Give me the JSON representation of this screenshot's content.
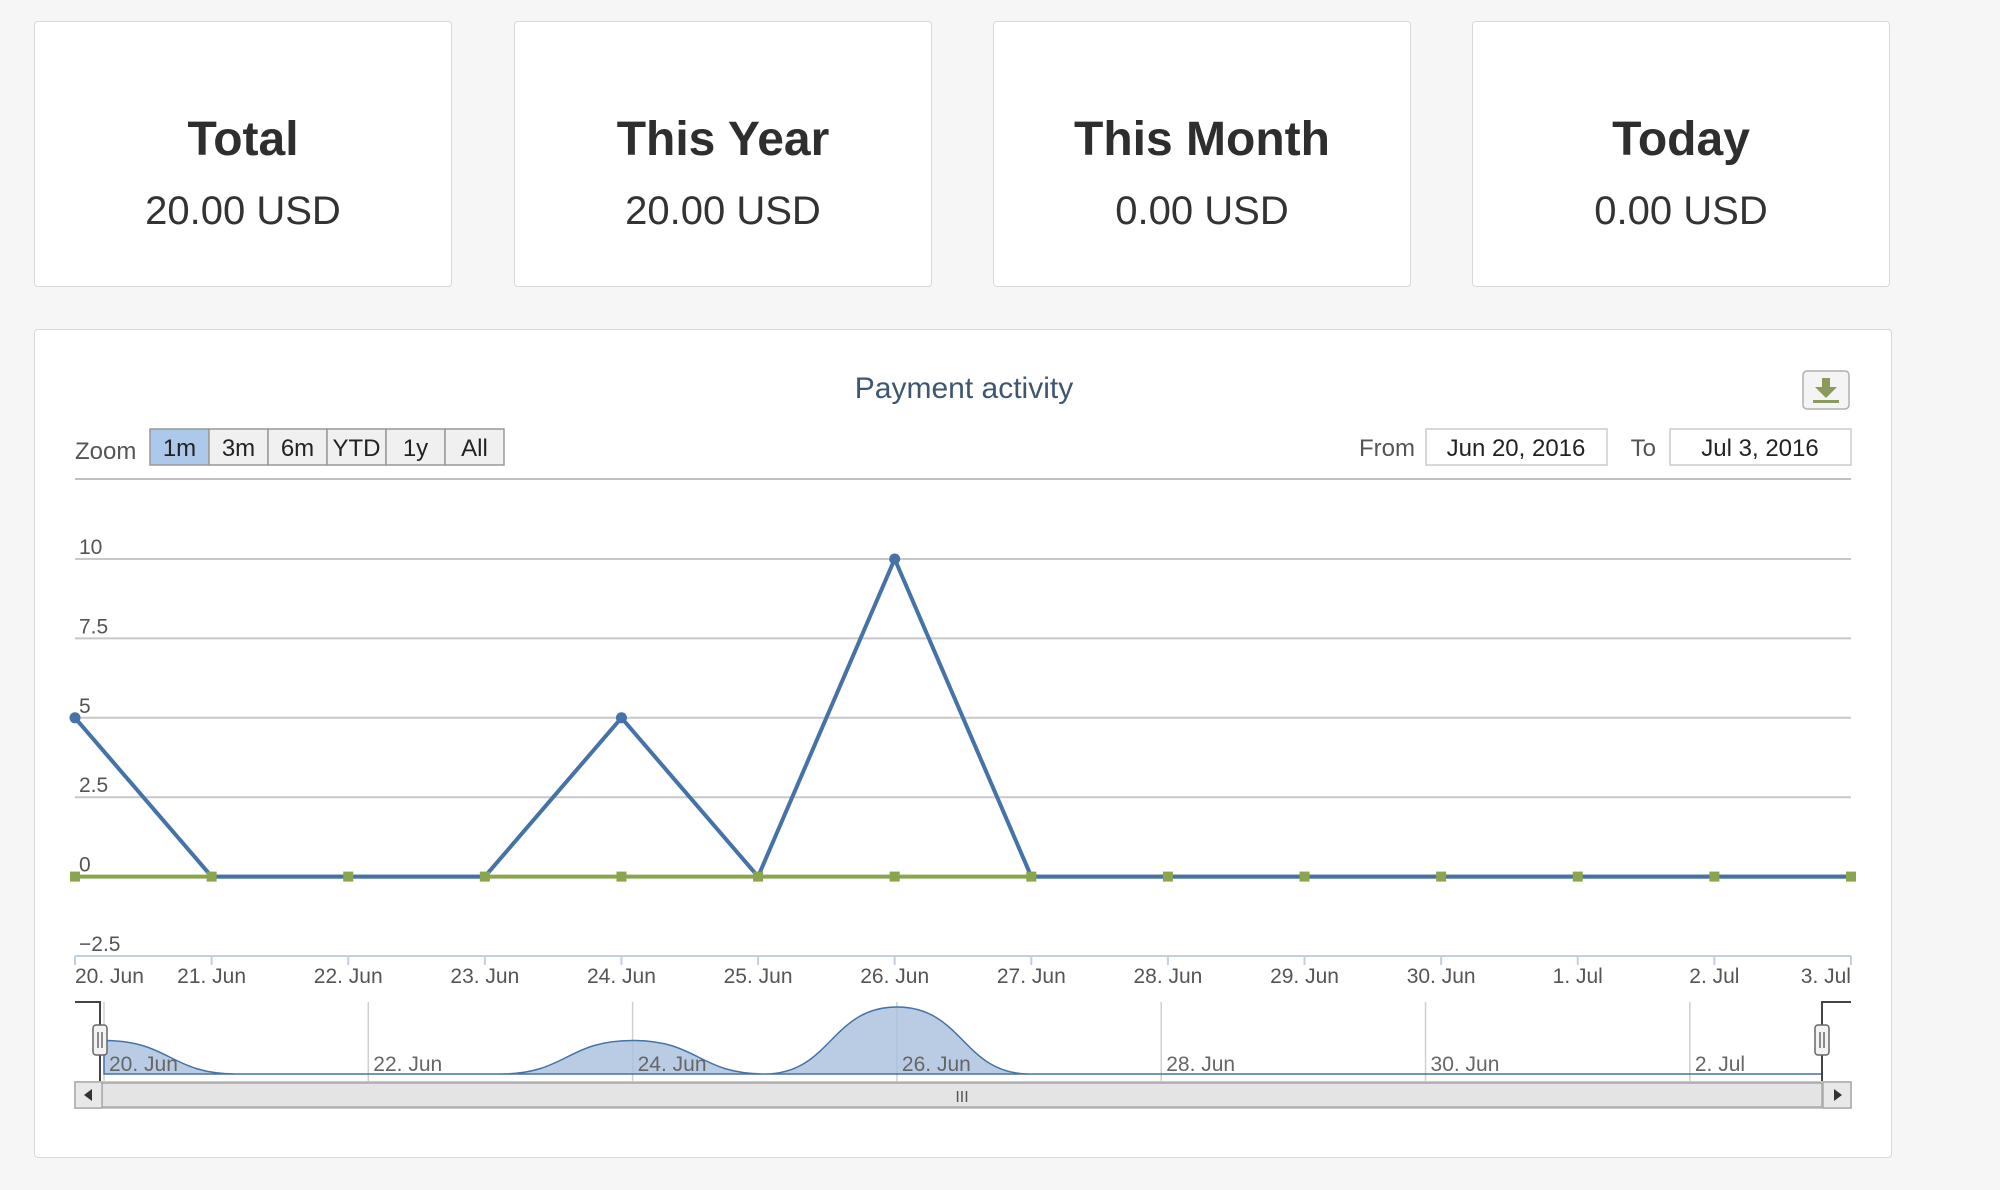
{
  "stats": [
    {
      "title": "Total",
      "value": "20.00 USD"
    },
    {
      "title": "This Year",
      "value": "20.00 USD"
    },
    {
      "title": "This Month",
      "value": "0.00 USD"
    },
    {
      "title": "Today",
      "value": "0.00 USD"
    }
  ],
  "chart_data": {
    "type": "line",
    "title": "Payment activity",
    "x": [
      "2016-06-20",
      "2016-06-21",
      "2016-06-22",
      "2016-06-23",
      "2016-06-24",
      "2016-06-25",
      "2016-06-26",
      "2016-06-27",
      "2016-06-28",
      "2016-06-29",
      "2016-06-30",
      "2016-07-01",
      "2016-07-02",
      "2016-07-03"
    ],
    "series": [
      {
        "values": [
          5,
          0,
          0,
          0,
          5,
          0,
          10,
          0,
          0,
          0,
          0,
          0,
          0,
          0
        ],
        "color": "#4572a7",
        "marker": "circle"
      },
      {
        "values": [
          0,
          0,
          0,
          0,
          0,
          0,
          0,
          0,
          0,
          0,
          0,
          0,
          0,
          0
        ],
        "color": "#89a54e",
        "marker": "square"
      }
    ],
    "ylim": [
      -2.5,
      10
    ],
    "yticks": [
      "10",
      "7.5",
      "5",
      "2.5",
      "0",
      "−2.5"
    ],
    "xtick_labels": [
      "20. Jun",
      "21. Jun",
      "22. Jun",
      "23. Jun",
      "24. Jun",
      "25. Jun",
      "26. Jun",
      "27. Jun",
      "28. Jun",
      "29. Jun",
      "30. Jun",
      "1. Jul",
      "2. Jul",
      "3. Jul"
    ],
    "navigator_labels": [
      "20. Jun",
      "22. Jun",
      "24. Jun",
      "26. Jun",
      "28. Jun",
      "30. Jun",
      "2. Jul"
    ],
    "grid": true,
    "zoom": {
      "label": "Zoom",
      "buttons": [
        "1m",
        "3m",
        "6m",
        "YTD",
        "1y",
        "All"
      ],
      "active": "1m"
    },
    "range": {
      "from_label": "From",
      "from_value": "Jun 20, 2016",
      "to_label": "To",
      "to_value": "Jul 3, 2016"
    },
    "scrollbar_grip": "III",
    "export_icon": "download-icon"
  }
}
